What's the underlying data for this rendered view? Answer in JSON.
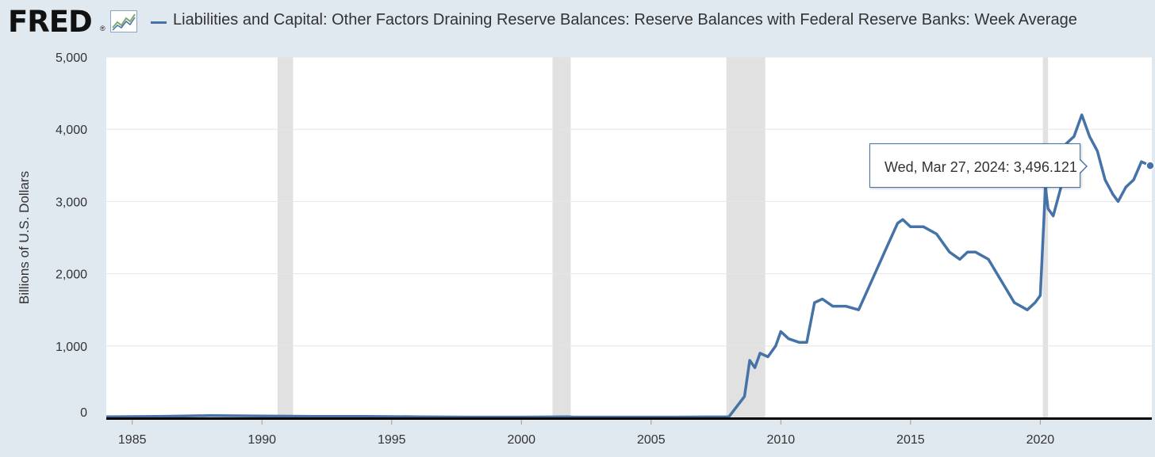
{
  "header": {
    "logo_text": "FRED",
    "logo_reg": "®",
    "logo_icon": "line-graph-icon",
    "series_title": "Liabilities and Capital: Other Factors Draining Reserve Balances: Reserve Balances with Federal Reserve Banks: Week Average"
  },
  "tooltip": {
    "date": "Wed, Mar 27, 2024:",
    "value": "3,496.121"
  },
  "colors": {
    "page_background": "#e1e9f0",
    "plot_background": "#ffffff",
    "series": "#4572a7",
    "recession": "#e1e1e1",
    "grid": "#e6e6e6"
  },
  "chart_data": {
    "type": "line",
    "title": "",
    "xlabel": "",
    "ylabel": "Billions of U.S. Dollars",
    "xlim": [
      1984.0,
      2024.3
    ],
    "ylim": [
      0,
      5000
    ],
    "x_ticks": [
      1985,
      1990,
      1995,
      2000,
      2005,
      2010,
      2015,
      2020
    ],
    "x_tick_labels": [
      "1985",
      "1990",
      "1995",
      "2000",
      "2005",
      "2010",
      "2015",
      "2020"
    ],
    "y_ticks": [
      0,
      1000,
      2000,
      3000,
      4000,
      5000
    ],
    "y_tick_labels": [
      "0",
      "1,000",
      "2,000",
      "3,000",
      "4,000",
      "5,000"
    ],
    "grid": "horizontal",
    "legend": "top",
    "recessions": [
      [
        1990.6,
        1991.2
      ],
      [
        2001.2,
        2001.9
      ],
      [
        2007.9,
        2009.4
      ],
      [
        2020.1,
        2020.3
      ]
    ],
    "series": [
      {
        "name": "Liabilities and Capital: Other Factors Draining Reserve Balances: Reserve Balances with Federal Reserve Banks: Week Average",
        "x": [
          1984.0,
          1986.0,
          1988.0,
          1990.0,
          1992.0,
          1994.0,
          1996.0,
          1998.0,
          2000.0,
          2001.8,
          2002.0,
          2004.0,
          2006.0,
          2008.0,
          2008.6,
          2008.8,
          2009.0,
          2009.2,
          2009.5,
          2009.8,
          2010.0,
          2010.3,
          2010.7,
          2011.0,
          2011.3,
          2011.6,
          2012.0,
          2012.5,
          2013.0,
          2013.5,
          2014.0,
          2014.5,
          2014.7,
          2015.0,
          2015.5,
          2016.0,
          2016.5,
          2016.9,
          2017.2,
          2017.5,
          2018.0,
          2018.5,
          2019.0,
          2019.5,
          2019.8,
          2020.0,
          2020.2,
          2020.3,
          2020.5,
          2020.8,
          2021.0,
          2021.3,
          2021.6,
          2021.9,
          2022.2,
          2022.5,
          2022.8,
          2023.0,
          2023.3,
          2023.6,
          2023.9,
          2024.24
        ],
        "values": [
          20,
          25,
          35,
          30,
          25,
          25,
          20,
          15,
          15,
          20,
          15,
          15,
          15,
          20,
          300,
          800,
          700,
          900,
          850,
          1000,
          1200,
          1100,
          1050,
          1050,
          1600,
          1650,
          1550,
          1550,
          1500,
          1900,
          2300,
          2700,
          2750,
          2650,
          2650,
          2550,
          2300,
          2200,
          2300,
          2300,
          2200,
          1900,
          1600,
          1500,
          1600,
          1700,
          3200,
          2900,
          2800,
          3200,
          3800,
          3900,
          4200,
          3900,
          3700,
          3300,
          3100,
          3000,
          3200,
          3300,
          3550,
          3496.121
        ]
      }
    ]
  }
}
